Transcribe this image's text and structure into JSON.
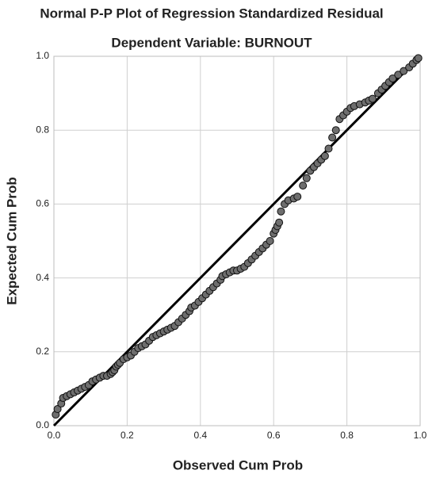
{
  "chart_data": {
    "type": "scatter",
    "title": "Normal P-P Plot of Regression Standardized Residual",
    "subtitle": "Dependent Variable: BURNOUT",
    "xlabel": "Observed Cum Prob",
    "ylabel": "Expected Cum Prob",
    "color": "#6e6e6e",
    "grid": true,
    "xlim": [
      0,
      1
    ],
    "ylim": [
      0,
      1
    ],
    "xticks": [
      {
        "value": 0,
        "label": "0.0"
      },
      0.2,
      0.4,
      0.6,
      0.8,
      {
        "value": 1,
        "label": "1.0"
      }
    ],
    "yticks": [
      {
        "value": 0,
        "label": "0.0"
      },
      0.2,
      0.4,
      0.6,
      0.8,
      {
        "value": 1,
        "label": "1.0"
      }
    ],
    "x": [
      0.005,
      0.01,
      0.02,
      0.025,
      0.035,
      0.045,
      0.055,
      0.065,
      0.075,
      0.085,
      0.095,
      0.105,
      0.115,
      0.125,
      0.135,
      0.145,
      0.155,
      0.16,
      0.165,
      0.17,
      0.175,
      0.18,
      0.19,
      0.2,
      0.21,
      0.22,
      0.23,
      0.24,
      0.25,
      0.26,
      0.27,
      0.28,
      0.29,
      0.3,
      0.31,
      0.32,
      0.33,
      0.34,
      0.35,
      0.36,
      0.37,
      0.375,
      0.385,
      0.395,
      0.405,
      0.415,
      0.425,
      0.435,
      0.445,
      0.455,
      0.46,
      0.47,
      0.48,
      0.49,
      0.5,
      0.51,
      0.52,
      0.53,
      0.54,
      0.55,
      0.56,
      0.57,
      0.58,
      0.59,
      0.6,
      0.605,
      0.61,
      0.615,
      0.62,
      0.63,
      0.64,
      0.655,
      0.665,
      0.68,
      0.69,
      0.7,
      0.71,
      0.72,
      0.73,
      0.74,
      0.75,
      0.76,
      0.77,
      0.78,
      0.79,
      0.8,
      0.81,
      0.82,
      0.835,
      0.85,
      0.86,
      0.87,
      0.885,
      0.895,
      0.905,
      0.915,
      0.925,
      0.94,
      0.955,
      0.97,
      0.98,
      0.99,
      0.995
    ],
    "values": [
      0.03,
      0.045,
      0.06,
      0.075,
      0.08,
      0.085,
      0.09,
      0.095,
      0.1,
      0.105,
      0.11,
      0.12,
      0.125,
      0.13,
      0.135,
      0.135,
      0.14,
      0.145,
      0.15,
      0.16,
      0.165,
      0.17,
      0.18,
      0.185,
      0.19,
      0.2,
      0.21,
      0.215,
      0.22,
      0.23,
      0.24,
      0.245,
      0.25,
      0.255,
      0.26,
      0.265,
      0.27,
      0.28,
      0.29,
      0.3,
      0.31,
      0.32,
      0.325,
      0.335,
      0.345,
      0.355,
      0.365,
      0.375,
      0.385,
      0.395,
      0.405,
      0.41,
      0.415,
      0.42,
      0.42,
      0.425,
      0.43,
      0.44,
      0.45,
      0.46,
      0.47,
      0.48,
      0.49,
      0.5,
      0.52,
      0.53,
      0.54,
      0.55,
      0.58,
      0.6,
      0.61,
      0.615,
      0.62,
      0.65,
      0.67,
      0.69,
      0.7,
      0.71,
      0.72,
      0.73,
      0.75,
      0.78,
      0.8,
      0.83,
      0.84,
      0.85,
      0.86,
      0.865,
      0.87,
      0.875,
      0.88,
      0.885,
      0.9,
      0.91,
      0.92,
      0.93,
      0.94,
      0.95,
      0.96,
      0.97,
      0.98,
      0.99,
      0.995
    ]
  }
}
